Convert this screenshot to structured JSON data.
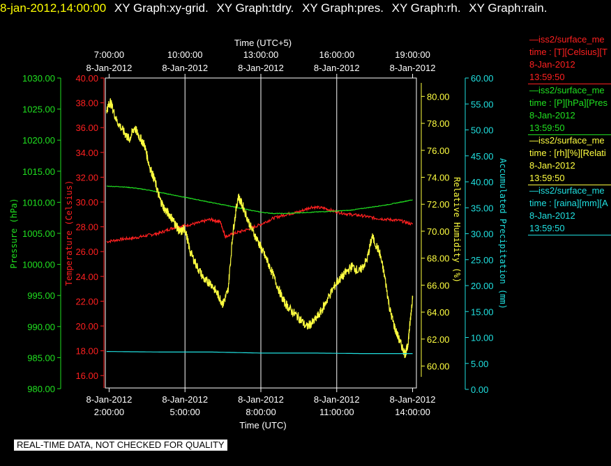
{
  "header": {
    "timestamp": "8-jan-2012,14:00:00",
    "titles": [
      "XY Graph:xy-grid.",
      "XY Graph:tdry.",
      "XY Graph:pres.",
      "XY Graph:rh.",
      "XY Graph:rain."
    ],
    "timestamp_color": "#ffff00",
    "title_color": "#ffffff"
  },
  "notice": "REAL-TIME DATA, NOT CHECKED FOR QUALITY",
  "legend": [
    {
      "series": "iss2/surface_me",
      "field": "time : [T][Celsius][T",
      "date": "8-Jan-2012",
      "time": "13:59:50",
      "color": "#ff2020"
    },
    {
      "series": "iss2/surface_me",
      "field": "time : [P][hPa][Pres",
      "date": "8-Jan-2012",
      "time": "13:59:50",
      "color": "#20e020"
    },
    {
      "series": "iss2/surface_me",
      "field": "time : [rh][%][Relati",
      "date": "8-Jan-2012",
      "time": "13:59:50",
      "color": "#ffff40"
    },
    {
      "series": "iss2/surface_me",
      "field": "time : [raina][mm][A",
      "date": "8-Jan-2012",
      "time": "13:59:50",
      "color": "#20e0e0"
    }
  ],
  "chart_data": {
    "type": "line",
    "x_bottom_label": "Time (UTC)",
    "x_top_label": "Time (UTC+5)",
    "x_range_utc_hours": [
      1.85,
      14.15
    ],
    "x_bottom_ticks": [
      {
        "date": "8-Jan-2012",
        "time": "2:00:00",
        "hour": 2
      },
      {
        "date": "8-Jan-2012",
        "time": "5:00:00",
        "hour": 5
      },
      {
        "date": "8-Jan-2012",
        "time": "8:00:00",
        "hour": 8
      },
      {
        "date": "8-Jan-2012",
        "time": "11:00:00",
        "hour": 11
      },
      {
        "date": "8-Jan-2012",
        "time": "14:00:00",
        "hour": 14
      }
    ],
    "x_top_ticks": [
      {
        "date": "8-Jan-2012",
        "time": "7:00:00",
        "hour": 2
      },
      {
        "date": "8-Jan-2012",
        "time": "10:00:00",
        "hour": 5
      },
      {
        "date": "8-Jan-2012",
        "time": "13:00:00",
        "hour": 8
      },
      {
        "date": "8-Jan-2012",
        "time": "16:00:00",
        "hour": 11
      },
      {
        "date": "8-Jan-2012",
        "time": "19:00:00",
        "hour": 14
      }
    ],
    "axes": {
      "pressure": {
        "label": "Pressure (hPa)",
        "range": [
          980,
          1030
        ],
        "ticks": [
          "980.00",
          "985.00",
          "990.00",
          "995.00",
          "1000.00",
          "1005.00",
          "1010.00",
          "1015.00",
          "1020.00",
          "1025.00",
          "1030.00"
        ],
        "color": "#20e020"
      },
      "temperature": {
        "label": "Temperature (Celsius)",
        "range": [
          15,
          40
        ],
        "ticks": [
          "16.00",
          "18.00",
          "20.00",
          "22.00",
          "24.00",
          "26.00",
          "28.00",
          "30.00",
          "32.00",
          "34.00",
          "36.00",
          "38.00",
          "40.00"
        ],
        "color": "#ff2020"
      },
      "rh": {
        "label": "Relative Humidity (%)",
        "range": [
          59.2,
          81
        ],
        "ticks": [
          "60.00",
          "62.00",
          "64.00",
          "66.00",
          "68.00",
          "70.00",
          "72.00",
          "74.00",
          "76.00",
          "78.00",
          "80.00"
        ],
        "color": "#ffff40"
      },
      "rain": {
        "label": "Accumulated Precipitation (mm)",
        "range": [
          0,
          60
        ],
        "ticks": [
          "0.00",
          "5.00",
          "10.00",
          "15.00",
          "20.00",
          "25.00",
          "30.00",
          "35.00",
          "40.00",
          "45.00",
          "50.00",
          "55.00",
          "60.00"
        ],
        "color": "#20e0e0"
      }
    },
    "series": [
      {
        "name": "iss2/surface_me T",
        "axis": "temperature",
        "color": "#ff2020",
        "noise": 0.12,
        "x": [
          1.9,
          2.5,
          3.0,
          3.5,
          4.0,
          4.5,
          5.0,
          5.5,
          6.0,
          6.4,
          6.6,
          7.0,
          7.5,
          8.0,
          8.5,
          9.0,
          9.5,
          10.0,
          10.5,
          11.0,
          11.5,
          12.0,
          12.5,
          13.0,
          13.5,
          14.0
        ],
        "y": [
          26.8,
          27.0,
          27.1,
          27.3,
          27.5,
          27.9,
          28.1,
          28.3,
          28.6,
          28.4,
          27.2,
          27.5,
          27.8,
          28.2,
          28.7,
          29.0,
          29.2,
          29.6,
          29.5,
          29.2,
          29.0,
          28.9,
          28.7,
          28.6,
          28.5,
          28.2
        ]
      },
      {
        "name": "iss2/surface_me P",
        "axis": "pressure",
        "color": "#20e020",
        "noise": 0.05,
        "x": [
          1.9,
          2.5,
          3.0,
          3.5,
          4.0,
          4.5,
          5.0,
          5.5,
          6.0,
          6.5,
          7.0,
          7.5,
          8.0,
          8.5,
          9.0,
          9.5,
          10.0,
          10.5,
          11.0,
          11.5,
          12.0,
          12.5,
          13.0,
          13.5,
          14.0
        ],
        "y": [
          1012.6,
          1012.5,
          1012.3,
          1012.0,
          1011.6,
          1011.2,
          1010.8,
          1010.4,
          1010.0,
          1009.6,
          1009.2,
          1008.8,
          1008.4,
          1008.2,
          1008.2,
          1008.3,
          1008.4,
          1008.5,
          1008.6,
          1008.7,
          1009.0,
          1009.3,
          1009.6,
          1010.0,
          1010.4
        ]
      },
      {
        "name": "iss2/surface_me rh",
        "axis": "rh",
        "color": "#ffff40",
        "noise": 0.35,
        "x": [
          1.9,
          2.05,
          2.3,
          2.6,
          2.8,
          3.0,
          3.2,
          3.4,
          3.6,
          3.8,
          4.0,
          4.2,
          4.4,
          4.6,
          4.8,
          5.0,
          5.2,
          5.5,
          5.8,
          6.0,
          6.3,
          6.5,
          6.7,
          6.9,
          7.1,
          7.3,
          7.6,
          7.9,
          8.1,
          8.3,
          8.6,
          8.9,
          9.2,
          9.5,
          9.8,
          10.1,
          10.4,
          10.7,
          11.0,
          11.3,
          11.6,
          11.9,
          12.2,
          12.4,
          12.7,
          12.9,
          13.1,
          13.3,
          13.5,
          13.7,
          13.8,
          13.9,
          14.0
        ],
        "y": [
          79.0,
          79.6,
          78.2,
          77.3,
          76.8,
          77.7,
          77.0,
          76.4,
          74.8,
          73.8,
          72.4,
          71.6,
          71.2,
          70.6,
          69.9,
          70.2,
          68.5,
          67.3,
          66.3,
          66.2,
          65.3,
          64.6,
          65.6,
          70.0,
          72.6,
          71.8,
          70.3,
          69.2,
          68.4,
          67.6,
          66.2,
          64.8,
          64.1,
          63.6,
          62.9,
          63.3,
          64.1,
          65.2,
          66.2,
          66.8,
          67.4,
          67.0,
          67.9,
          69.6,
          68.4,
          66.6,
          64.2,
          62.8,
          61.8,
          60.9,
          61.4,
          63.2,
          65.2
        ]
      },
      {
        "name": "iss2/surface_me rain",
        "axis": "rain",
        "color": "#20e0e0",
        "noise": 0,
        "x": [
          1.9,
          4.0,
          6.0,
          8.0,
          10.0,
          12.0,
          14.0
        ],
        "y": [
          7.3,
          7.2,
          7.2,
          7.0,
          7.0,
          6.9,
          6.9
        ]
      }
    ],
    "grid": true
  }
}
